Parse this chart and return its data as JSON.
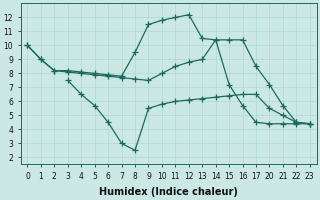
{
  "xlabel": "Humidex (Indice chaleur)",
  "bg_color": "#cce8e4",
  "line_color": "#1a6b5e",
  "grid_color": "#b0d8d0",
  "xlim": [
    -0.5,
    23.5
  ],
  "ylim": [
    1.5,
    13.0
  ],
  "xticks": [
    0,
    1,
    2,
    3,
    4,
    5,
    6,
    7,
    8,
    9,
    10,
    11,
    12,
    13,
    14,
    15,
    16,
    17,
    20,
    21,
    22,
    23
  ],
  "yticks": [
    2,
    3,
    4,
    5,
    6,
    7,
    8,
    9,
    10,
    11,
    12
  ],
  "line1_x": [
    0,
    1,
    2,
    3,
    4,
    5,
    6,
    7,
    8,
    9,
    10,
    11,
    12,
    13,
    14,
    15,
    16,
    17,
    20,
    21,
    22,
    23
  ],
  "line1_y": [
    10.0,
    9.0,
    8.2,
    8.2,
    8.1,
    8.0,
    7.9,
    7.8,
    9.5,
    11.5,
    11.8,
    12.0,
    12.2,
    10.5,
    10.4,
    7.2,
    5.7,
    4.5,
    4.4,
    4.4,
    4.4,
    4.4
  ],
  "line2_x": [
    0,
    1,
    2,
    3,
    4,
    5,
    6,
    7,
    8,
    9,
    10,
    11,
    12,
    13,
    14,
    15,
    16,
    17,
    20,
    21,
    22,
    23
  ],
  "line2_y": [
    10.0,
    9.0,
    8.2,
    8.1,
    8.0,
    7.9,
    7.8,
    7.7,
    7.6,
    7.5,
    8.0,
    8.5,
    8.8,
    9.0,
    10.4,
    10.4,
    10.4,
    8.5,
    7.2,
    5.7,
    4.5,
    4.4
  ],
  "line3_x": [
    3,
    4,
    5,
    6,
    7,
    8,
    9,
    10,
    11,
    12,
    13,
    14,
    15,
    16,
    17,
    20,
    21,
    22,
    23
  ],
  "line3_y": [
    7.5,
    6.5,
    5.7,
    4.5,
    3.0,
    2.5,
    5.5,
    5.8,
    6.0,
    6.1,
    6.2,
    6.3,
    6.4,
    6.5,
    6.5,
    5.5,
    5.0,
    4.5,
    4.4
  ],
  "marker": "+",
  "markersize": 4,
  "linewidth": 0.9,
  "tick_fontsize": 5.5,
  "xlabel_fontsize": 7
}
